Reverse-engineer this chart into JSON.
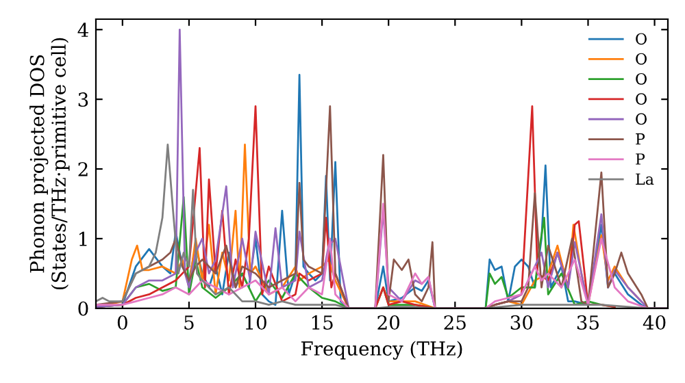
{
  "chart_data": {
    "type": "line",
    "xlabel": "Frequency (THz)",
    "ylabel": "Phonon projected DOS\n(States/THz·primitive cell)",
    "xlim": [
      -2,
      41
    ],
    "ylim": [
      0,
      4.15
    ],
    "xticks": [
      0,
      5,
      10,
      15,
      20,
      25,
      30,
      35,
      40
    ],
    "yticks": [
      0,
      1,
      2,
      3,
      4
    ],
    "grid": false,
    "legend": "top right",
    "series": [
      {
        "name": "O",
        "color": "#1f77b4",
        "x": [
          -2,
          0,
          1,
          2,
          3,
          3.6,
          4,
          4.5,
          5,
          5.5,
          6,
          6.5,
          7,
          7.5,
          8,
          8.5,
          9,
          9.5,
          10,
          10.5,
          11,
          11.5,
          12,
          12.5,
          13,
          13.3,
          13.6,
          14,
          14.5,
          15,
          15.3,
          15.6,
          16,
          16.4,
          17,
          19,
          19.6,
          20,
          21,
          22,
          22.5,
          23,
          23.5,
          27.3,
          27.6,
          28,
          28.5,
          29,
          29.5,
          30,
          30.5,
          31,
          31.5,
          31.8,
          32.2,
          33,
          33.5,
          34,
          35,
          36,
          36.5,
          37,
          38,
          39,
          39.5,
          41
        ],
        "values": [
          0.03,
          0.05,
          0.6,
          0.85,
          0.6,
          0.5,
          1.1,
          0.6,
          0.4,
          0.9,
          0.5,
          0.3,
          0.6,
          0.2,
          0.8,
          0.3,
          0.5,
          0.3,
          1.0,
          0.2,
          0.1,
          0.05,
          1.4,
          0.2,
          0.5,
          3.35,
          0.6,
          0.5,
          0.4,
          0.5,
          1.9,
          0.4,
          2.1,
          0.1,
          0,
          0,
          0.6,
          0.1,
          0.15,
          0.3,
          0.25,
          0.4,
          0,
          0,
          0.7,
          0.55,
          0.6,
          0.1,
          0.6,
          0.7,
          0.6,
          0.3,
          1.0,
          2.05,
          0.3,
          0.6,
          0.1,
          0.1,
          0.05,
          1.2,
          0.3,
          0.5,
          0.2,
          0.05,
          0,
          0
        ]
      },
      {
        "name": "O",
        "color": "#ff7f0e",
        "x": [
          -2,
          0,
          0.7,
          1.1,
          1.5,
          2,
          3,
          4,
          4.5,
          5,
          5.5,
          6,
          6.5,
          7,
          7.5,
          8,
          8.5,
          8.8,
          9.2,
          9.6,
          10,
          11,
          12,
          13,
          13.3,
          14,
          15,
          15.5,
          16,
          17,
          19,
          19.6,
          20,
          22,
          23.5,
          27.3,
          28,
          29,
          30,
          31,
          32,
          32.7,
          33.5,
          33.9,
          34.5,
          35,
          36,
          36.5,
          37,
          38,
          39
        ],
        "values": [
          0.02,
          0.1,
          0.7,
          0.9,
          0.55,
          0.55,
          0.6,
          0.5,
          0.7,
          0.3,
          1.0,
          0.4,
          1.2,
          0.2,
          0.8,
          0.4,
          1.4,
          0.3,
          2.35,
          0.5,
          0.6,
          0.2,
          0.3,
          0.6,
          0.4,
          0.5,
          0.6,
          0.7,
          0.4,
          0,
          0,
          0.3,
          0.1,
          0.1,
          0,
          0,
          0.05,
          0.1,
          0.05,
          0.4,
          0.5,
          0.9,
          0.3,
          1.2,
          0.5,
          0.05,
          1.05,
          0.4,
          0.6,
          0.3,
          0.1
        ]
      },
      {
        "name": "O",
        "color": "#2ca02c",
        "x": [
          -2,
          0,
          1,
          2,
          3,
          4,
          4.6,
          5,
          5.5,
          6,
          7,
          8,
          9,
          10,
          11,
          12,
          13,
          14,
          15,
          16,
          17,
          19,
          19.6,
          20,
          22,
          23.5,
          27.3,
          27.6,
          28,
          28.5,
          29,
          30,
          31,
          31.3,
          31.7,
          32,
          33,
          34,
          35,
          36,
          37
        ],
        "values": [
          0.02,
          0.05,
          0.3,
          0.35,
          0.25,
          0.3,
          1.6,
          0.2,
          0.7,
          0.3,
          0.15,
          0.3,
          0.5,
          0.1,
          0.4,
          0.15,
          0.5,
          0.3,
          0.15,
          0.1,
          0,
          0,
          0.3,
          0.05,
          0.05,
          0,
          0,
          0.5,
          0.35,
          0.45,
          0.15,
          0.3,
          0.3,
          0.8,
          1.3,
          0.2,
          0.5,
          0.05,
          0.1,
          0.05,
          0.02
        ]
      },
      {
        "name": "O",
        "color": "#d62728",
        "x": [
          -2,
          0,
          1,
          2,
          3,
          4,
          4.5,
          5,
          5.8,
          6.2,
          6.5,
          7,
          7.5,
          8,
          8.5,
          9,
          9.5,
          10,
          10.5,
          11,
          12,
          13,
          13.3,
          14,
          15,
          15.3,
          15.7,
          16,
          17,
          19,
          19.6,
          20,
          21,
          22,
          23.5,
          27.3,
          28,
          29,
          30,
          30.8,
          31.2,
          32,
          32.7,
          33.5,
          34,
          34.3,
          35,
          36,
          37
        ],
        "values": [
          0.02,
          0.05,
          0.15,
          0.2,
          0.3,
          0.4,
          0.5,
          0.6,
          2.3,
          0.3,
          1.85,
          0.5,
          1.4,
          0.2,
          0.7,
          0.3,
          1.0,
          2.9,
          0.2,
          0.6,
          0.1,
          0.2,
          0.5,
          0.4,
          0.5,
          1.3,
          0.3,
          0.5,
          0,
          0,
          0.3,
          0.05,
          0.1,
          0.05,
          0,
          0,
          0.05,
          0.1,
          0.2,
          2.9,
          0.5,
          0.4,
          0.8,
          0.3,
          1.2,
          1.25,
          0.05,
          0.05,
          0.02
        ]
      },
      {
        "name": "O",
        "color": "#9467bd",
        "x": [
          -2,
          0,
          1,
          2,
          3,
          4,
          4.3,
          4.7,
          5,
          5.5,
          6,
          6.5,
          7,
          7.8,
          8.3,
          9,
          9.6,
          10,
          11,
          11.5,
          12,
          13,
          13.3,
          14,
          15,
          15.5,
          16,
          17,
          19,
          19.6,
          20,
          21,
          22,
          22.5,
          23,
          23.5,
          27.3,
          28,
          29,
          30,
          31,
          31.5,
          32,
          32.7,
          33.5,
          34,
          35,
          36,
          36.5,
          37,
          38,
          39.5,
          41
        ],
        "values": [
          0.02,
          0.05,
          0.3,
          0.4,
          0.4,
          0.5,
          4.0,
          0.5,
          0.3,
          0.8,
          1.0,
          0.5,
          0.7,
          1.75,
          0.3,
          1.0,
          0.4,
          1.1,
          0.2,
          1.15,
          0.3,
          0.4,
          1.1,
          0.3,
          0.4,
          0.9,
          1.0,
          0,
          0,
          1.4,
          0.3,
          0.1,
          0.4,
          0.35,
          0.45,
          0,
          0,
          0.05,
          0.1,
          0.2,
          0.6,
          0.8,
          0.3,
          0.8,
          0.3,
          0.95,
          0.05,
          1.35,
          0.3,
          0.55,
          0.3,
          0,
          0
        ]
      },
      {
        "name": "P",
        "color": "#8c564b",
        "x": [
          -2,
          0,
          1,
          2,
          3,
          3.6,
          4,
          4.5,
          5,
          5.5,
          6,
          7,
          7.8,
          8.5,
          9,
          10,
          11,
          12,
          13,
          13.3,
          13.6,
          14,
          15,
          15.6,
          16,
          17,
          19,
          19.6,
          20,
          20.4,
          21,
          21.5,
          22,
          22.5,
          23,
          23.3,
          23.5,
          27.3,
          28,
          29,
          30,
          30.5,
          31,
          31.5,
          32,
          33,
          33.8,
          34.5,
          35,
          36,
          36.5,
          37,
          37.5,
          38,
          39,
          39.5,
          41
        ],
        "values": [
          0.05,
          0.1,
          0.5,
          0.6,
          0.7,
          0.8,
          1.0,
          0.6,
          0.4,
          0.6,
          0.7,
          0.5,
          0.9,
          0.3,
          0.6,
          0.5,
          0.3,
          0.4,
          0.5,
          1.8,
          0.7,
          0.6,
          0.5,
          2.9,
          0.5,
          0,
          0,
          2.2,
          0.1,
          0.7,
          0.55,
          0.7,
          0.2,
          0.1,
          0.3,
          0.95,
          0,
          0,
          0.05,
          0.1,
          0.1,
          0.3,
          1.65,
          0.3,
          0.9,
          0.3,
          1.0,
          0.1,
          0.05,
          1.95,
          0.3,
          0.5,
          0.8,
          0.5,
          0.2,
          0,
          0
        ]
      },
      {
        "name": "P",
        "color": "#e377c2",
        "x": [
          -2,
          0,
          1,
          2,
          3,
          4,
          5,
          6,
          7,
          8,
          9,
          10,
          11,
          12,
          13,
          14,
          15,
          15.6,
          16,
          17,
          19,
          19.6,
          20,
          21,
          22,
          22.5,
          23,
          23.5,
          27.3,
          28,
          29,
          30,
          31,
          31.5,
          32,
          33,
          34,
          35,
          36,
          37,
          38,
          39.5,
          41
        ],
        "values": [
          0.05,
          0.05,
          0.1,
          0.15,
          0.2,
          0.3,
          0.2,
          0.4,
          0.3,
          0.2,
          0.3,
          0.4,
          0.2,
          0.3,
          0.1,
          0.3,
          0.2,
          1.0,
          0.2,
          0,
          0,
          1.5,
          0.2,
          0.1,
          0.5,
          0.35,
          0.45,
          0,
          0,
          0.1,
          0.15,
          0.2,
          0.6,
          0.4,
          0.5,
          0.3,
          0.7,
          0.05,
          1.0,
          0.3,
          0.1,
          0,
          0
        ]
      },
      {
        "name": "La",
        "color": "#7f7f7f",
        "x": [
          -2,
          -1.5,
          -1,
          0,
          0.5,
          1,
          2,
          2.5,
          3,
          3.4,
          3.8,
          4.2,
          4.6,
          5,
          5.3,
          5.6,
          6,
          7,
          8,
          9,
          10,
          11,
          12,
          13,
          14,
          15,
          16,
          17,
          19,
          20,
          22,
          23.5,
          27.3,
          30,
          33,
          36,
          39.5,
          41
        ],
        "values": [
          0.1,
          0.15,
          0.1,
          0.1,
          0.3,
          0.5,
          0.6,
          0.8,
          1.3,
          2.35,
          1.4,
          0.5,
          0.8,
          0.6,
          1.7,
          0.5,
          0.4,
          0.2,
          0.3,
          0.1,
          0.1,
          0.05,
          0.1,
          0.05,
          0.05,
          0.05,
          0.05,
          0,
          0,
          0.02,
          0.02,
          0,
          0,
          0.05,
          0.05,
          0.05,
          0,
          0
        ]
      }
    ]
  }
}
